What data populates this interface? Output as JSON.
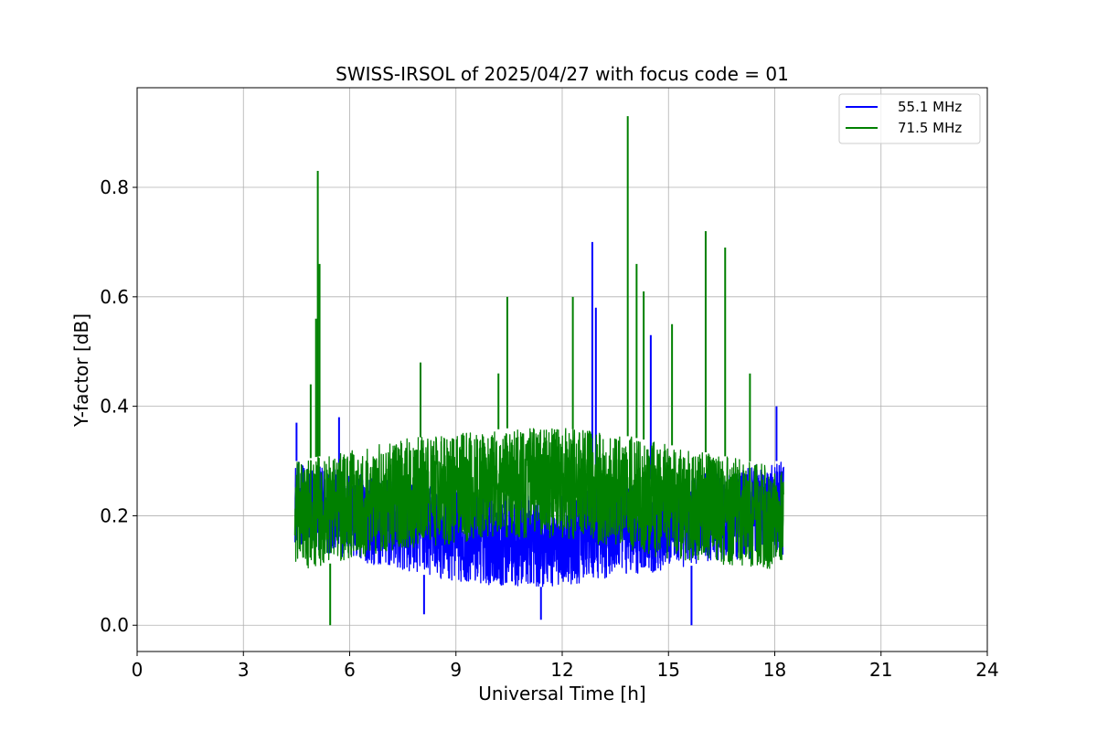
{
  "chart_data": {
    "type": "line",
    "title": "SWISS-IRSOL of 2025/04/27 with focus code = 01",
    "xlabel": "Universal Time [h]",
    "ylabel": "Y-factor [dB]",
    "xlim": [
      0,
      24
    ],
    "ylim": [
      -0.048,
      0.982
    ],
    "xticks": [
      0,
      3,
      6,
      9,
      12,
      15,
      18,
      21,
      24
    ],
    "xtick_labels": [
      "0",
      "3",
      "6",
      "9",
      "12",
      "15",
      "18",
      "21",
      "24"
    ],
    "yticks": [
      0.0,
      0.2,
      0.4,
      0.6,
      0.8
    ],
    "ytick_labels": [
      "0.0",
      "0.2",
      "0.4",
      "0.6",
      "0.8"
    ],
    "grid": true,
    "legend_position": "top-right",
    "series": [
      {
        "name": "55.1 MHz",
        "color": "#0000ff",
        "x_range": [
          4.45,
          18.25
        ],
        "band": {
          "x": [
            4.5,
            6,
            7.5,
            9,
            10.5,
            12,
            13.5,
            15,
            16.5,
            18,
            18.25
          ],
          "lower": [
            0.15,
            0.12,
            0.1,
            0.08,
            0.07,
            0.07,
            0.09,
            0.1,
            0.12,
            0.12,
            0.13
          ],
          "upper": [
            0.3,
            0.28,
            0.26,
            0.25,
            0.24,
            0.24,
            0.26,
            0.27,
            0.28,
            0.3,
            0.3
          ]
        },
        "spikes": [
          {
            "x": 4.5,
            "y": 0.37
          },
          {
            "x": 5.7,
            "y": 0.38
          },
          {
            "x": 8.1,
            "y": 0.02
          },
          {
            "x": 11.4,
            "y": 0.01
          },
          {
            "x": 12.85,
            "y": 0.7
          },
          {
            "x": 12.95,
            "y": 0.58
          },
          {
            "x": 14.5,
            "y": 0.53
          },
          {
            "x": 15.65,
            "y": 0.0
          },
          {
            "x": 18.05,
            "y": 0.4
          }
        ]
      },
      {
        "name": "71.5 MHz",
        "color": "#008000",
        "x_range": [
          4.45,
          18.25
        ],
        "band": {
          "x": [
            4.5,
            6,
            7.5,
            9,
            10.5,
            12,
            13.5,
            15,
            16.5,
            18,
            18.25
          ],
          "lower": [
            0.1,
            0.12,
            0.14,
            0.15,
            0.16,
            0.16,
            0.14,
            0.12,
            0.11,
            0.1,
            0.1
          ],
          "upper": [
            0.3,
            0.32,
            0.34,
            0.35,
            0.36,
            0.36,
            0.35,
            0.33,
            0.31,
            0.29,
            0.28
          ]
        },
        "spikes": [
          {
            "x": 4.9,
            "y": 0.44
          },
          {
            "x": 5.05,
            "y": 0.56
          },
          {
            "x": 5.1,
            "y": 0.83
          },
          {
            "x": 5.15,
            "y": 0.66
          },
          {
            "x": 5.45,
            "y": 0.0
          },
          {
            "x": 8.0,
            "y": 0.48
          },
          {
            "x": 10.2,
            "y": 0.46
          },
          {
            "x": 10.45,
            "y": 0.6
          },
          {
            "x": 12.3,
            "y": 0.6
          },
          {
            "x": 13.85,
            "y": 0.93
          },
          {
            "x": 14.1,
            "y": 0.66
          },
          {
            "x": 14.3,
            "y": 0.61
          },
          {
            "x": 15.1,
            "y": 0.55
          },
          {
            "x": 16.05,
            "y": 0.72
          },
          {
            "x": 16.6,
            "y": 0.69
          },
          {
            "x": 17.3,
            "y": 0.46
          }
        ]
      }
    ]
  }
}
